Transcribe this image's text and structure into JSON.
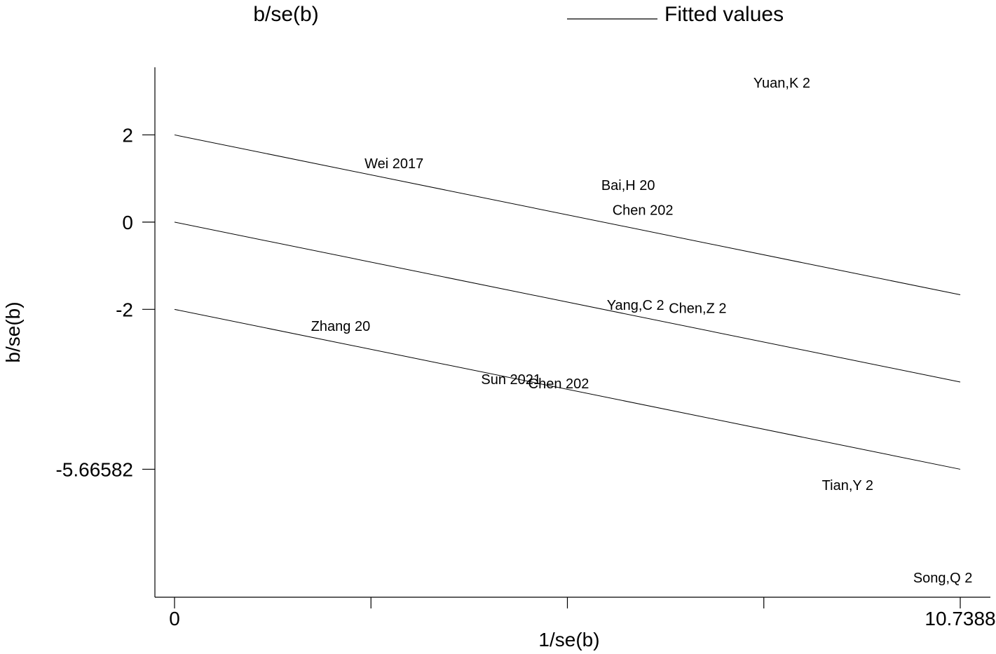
{
  "chart_data": {
    "type": "scatter",
    "title": "",
    "xlabel": "1/se(b)",
    "ylabel": "b/se(b)",
    "xlim": [
      0,
      10.7388
    ],
    "ylim": [
      -8.6,
      3.55
    ],
    "x_ticks": [
      0,
      2.6847,
      5.3694,
      8.0541,
      10.7388
    ],
    "x_tick_labels": [
      "0",
      "",
      "",
      "",
      "10.7388"
    ],
    "y_ticks": [
      2,
      0,
      -2,
      -5.66582
    ],
    "y_tick_labels": [
      "2",
      "0",
      "-2",
      "-5.66582"
    ],
    "legend": {
      "placement": "top",
      "entries": [
        {
          "label": "b/se(b)",
          "marker": "label"
        },
        {
          "label": "Fitted values",
          "marker": "line"
        }
      ]
    },
    "points": [
      {
        "label": "Yuan,K 2",
        "x": 8.3,
        "y": 3.2
      },
      {
        "label": "Wei 2017",
        "x": 3.0,
        "y": 1.35
      },
      {
        "label": "Bai,H 20",
        "x": 6.2,
        "y": 0.85
      },
      {
        "label": "Chen 202",
        "x": 6.4,
        "y": 0.28
      },
      {
        "label": "Yang,C 2",
        "x": 6.3,
        "y": -1.9
      },
      {
        "label": "Chen,Z 2",
        "x": 7.15,
        "y": -1.97
      },
      {
        "label": "Zhang 20",
        "x": 2.27,
        "y": -2.38
      },
      {
        "label": "Sun 2021",
        "x": 4.6,
        "y": -3.6
      },
      {
        "label": "Chen 202",
        "x": 5.25,
        "y": -3.7
      },
      {
        "label": "Tian,Y 2",
        "x": 9.2,
        "y": -6.03
      },
      {
        "label": "Song,Q 2",
        "x": 10.5,
        "y": -8.15
      }
    ],
    "lines": [
      {
        "name": "",
        "x": [
          0,
          10.7388
        ],
        "y": [
          2,
          -1.66582
        ]
      },
      {
        "name": "Fitted values",
        "x": [
          0,
          10.7388
        ],
        "y": [
          0,
          -3.66582
        ]
      },
      {
        "name": "",
        "x": [
          0,
          10.7388
        ],
        "y": [
          -2,
          -5.66582
        ]
      }
    ]
  }
}
